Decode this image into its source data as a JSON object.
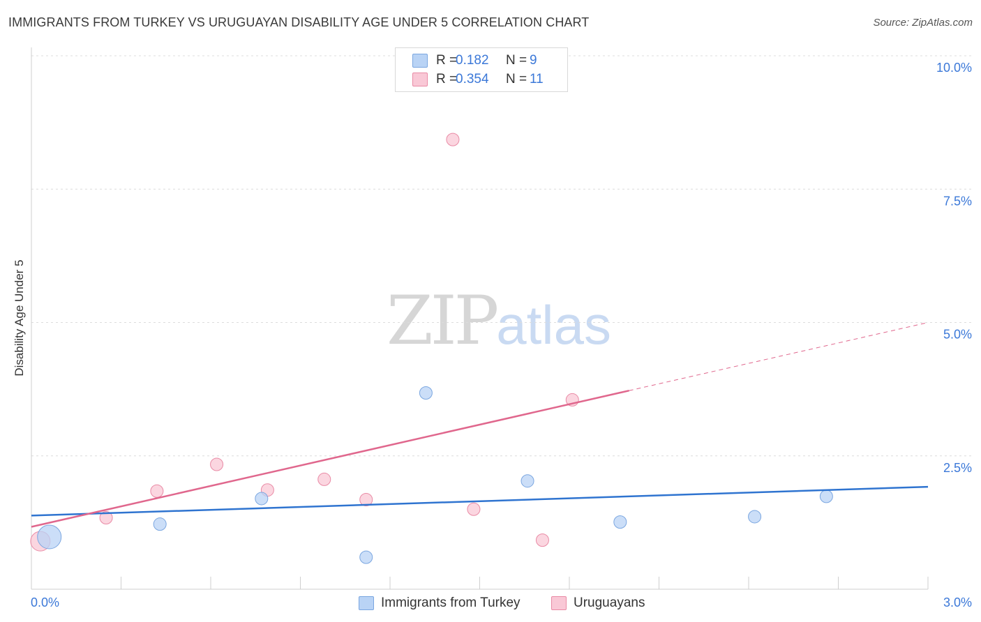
{
  "header": {
    "title": "IMMIGRANTS FROM TURKEY VS URUGUAYAN DISABILITY AGE UNDER 5 CORRELATION CHART",
    "source": "Source: ZipAtlas.com"
  },
  "watermark": {
    "zip": "ZIP",
    "atlas": "atlas"
  },
  "legend": {
    "rows": [
      {
        "r_label": "R =",
        "r_value": "0.182",
        "n_label": "N =",
        "n_value": "9",
        "color": "#b9d3f5",
        "border": "#7aa6e0"
      },
      {
        "r_label": "R =",
        "r_value": "0.354",
        "n_label": "N =",
        "n_value": "11",
        "color": "#f9c8d6",
        "border": "#e98aa5"
      }
    ]
  },
  "chart_data": {
    "type": "scatter",
    "title": "IMMIGRANTS FROM TURKEY VS URUGUAYAN DISABILITY AGE UNDER 5 CORRELATION CHART",
    "xlabel": "",
    "ylabel": "Disability Age Under 5",
    "xlim": [
      0,
      3.0
    ],
    "ylim": [
      0,
      10.0
    ],
    "x_tick_labels": [
      "0.0%",
      "3.0%"
    ],
    "y_ticks": [
      2.5,
      5.0,
      7.5,
      10.0
    ],
    "y_tick_labels": [
      "2.5%",
      "5.0%",
      "7.5%",
      "10.0%"
    ],
    "series": [
      {
        "name": "Immigrants from Turkey",
        "color": "#b9d3f5",
        "stroke": "#7aa6e0",
        "line_color": "#2f74d0",
        "x": [
          0.06,
          0.43,
          0.77,
          1.12,
          1.32,
          1.66,
          1.97,
          2.42,
          2.66
        ],
        "y": [
          0.98,
          1.22,
          1.7,
          0.6,
          3.68,
          2.03,
          1.26,
          1.36,
          1.74
        ],
        "sizes": [
          34,
          18,
          18,
          18,
          18,
          18,
          18,
          18,
          18
        ],
        "trend": {
          "x0": 0,
          "y0": 1.38,
          "x1": 3.0,
          "y1": 1.92,
          "solid_until": 3.0
        }
      },
      {
        "name": "Uruguayans",
        "color": "#f9c8d6",
        "stroke": "#e98aa5",
        "line_color": "#e0678d",
        "x": [
          0.03,
          0.25,
          0.42,
          0.62,
          0.79,
          0.98,
          1.12,
          1.41,
          1.48,
          1.71,
          1.81
        ],
        "y": [
          0.9,
          1.34,
          1.84,
          2.34,
          1.86,
          2.06,
          1.68,
          8.43,
          1.5,
          0.92,
          3.55
        ],
        "sizes": [
          28,
          18,
          18,
          18,
          18,
          18,
          18,
          18,
          18,
          18,
          18
        ],
        "trend": {
          "x0": 0,
          "y0": 1.17,
          "x1": 3.0,
          "y1": 5.0,
          "solid_until": 2.0
        }
      }
    ],
    "grid": true,
    "legend_position": "top-center"
  }
}
